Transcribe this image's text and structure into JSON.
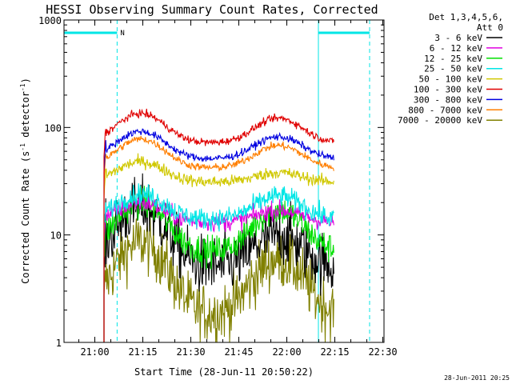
{
  "chart_data": {
    "type": "line",
    "title": "HESSI Observing Summary Count Rates, Corrected",
    "xlabel": "Start Time (28-Jun-11 20:50:22)",
    "ylabel_main": "Corrected Count Rate (s",
    "ylabel_sup1": "-1",
    "ylabel_mid": " detector",
    "ylabel_sup2": "-1",
    "ylabel_end": ")",
    "yscale": "log",
    "ylim": [
      1,
      1000
    ],
    "xlim_minutes": [
      0,
      100
    ],
    "x_unit": "minutes after 20:50:22",
    "x_ticks": [
      {
        "label": "21:00",
        "value": 9.63
      },
      {
        "label": "21:15",
        "value": 24.63
      },
      {
        "label": "21:30",
        "value": 39.63
      },
      {
        "label": "21:45",
        "value": 54.63
      },
      {
        "label": "22:00",
        "value": 69.63
      },
      {
        "label": "22:15",
        "value": 84.63
      },
      {
        "label": "22:30",
        "value": 99.63
      }
    ],
    "y_ticks": [
      {
        "label": "1",
        "value": 1
      },
      {
        "label": "10",
        "value": 10
      },
      {
        "label": "100",
        "value": 100
      },
      {
        "label": "1000",
        "value": 1000
      }
    ],
    "legend_header": [
      "Det 1,3,4,5,6,",
      "Att 0"
    ],
    "legend_position": "right",
    "data_start": 12.5,
    "data_end": 84.5,
    "night_intervals": [
      [
        0,
        16.6
      ],
      [
        79.5,
        95.5
      ]
    ],
    "night_label": "N",
    "saa_lines": [
      16.6,
      95.5
    ],
    "series": [
      {
        "name": "3 - 6 keV",
        "color": "#000000",
        "base": 5,
        "amp1": 18,
        "amp2": 10,
        "noise": 0.2
      },
      {
        "name": "6 - 12 keV",
        "color": "#e000e0",
        "base": 13,
        "amp1": 20,
        "amp2": 17,
        "noise": 0.06
      },
      {
        "name": "12 - 25 keV",
        "color": "#00e000",
        "base": 7,
        "amp1": 20,
        "amp2": 17,
        "noise": 0.1
      },
      {
        "name": "25 - 50 keV",
        "color": "#00e6e6",
        "base": 14,
        "amp1": 24,
        "amp2": 23,
        "noise": 0.07
      },
      {
        "name": "50 - 100 keV",
        "color": "#d0c800",
        "base": 31,
        "amp1": 48,
        "amp2": 38,
        "noise": 0.04
      },
      {
        "name": "100 - 300 keV",
        "color": "#e00000",
        "base": 72,
        "amp1": 135,
        "amp2": 122,
        "noise": 0.025
      },
      {
        "name": "300 - 800 keV",
        "color": "#0000e0",
        "base": 51,
        "amp1": 92,
        "amp2": 82,
        "noise": 0.025
      },
      {
        "name": "800 - 7000 keV",
        "color": "#ff7f00",
        "base": 42,
        "amp1": 78,
        "amp2": 68,
        "noise": 0.025
      },
      {
        "name": "7000 - 20000 keV",
        "color": "#808000",
        "base": 1.8,
        "amp1": 8.5,
        "amp2": 6,
        "noise": 0.2
      }
    ],
    "peak1_minute": 24,
    "peak2_minute": 67,
    "trough_minute": 45
  },
  "footer": {
    "timestamp": "28-Jun-2011 20:25"
  },
  "colors": {
    "night_bar": "#00e6e6",
    "saa_line": "#00e6e6"
  }
}
